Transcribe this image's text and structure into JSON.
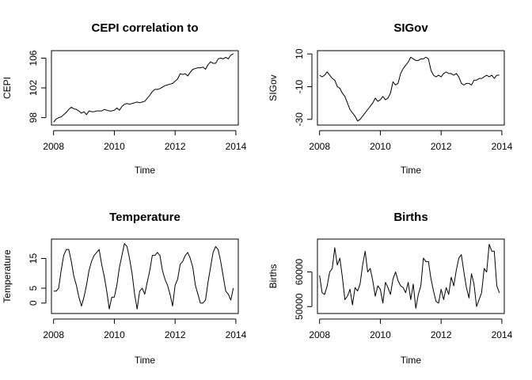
{
  "chart_data": [
    {
      "type": "line",
      "title": "CEPI correlation to",
      "xlabel": "Time",
      "ylabel": "CEPI",
      "xlim": [
        2007.93,
        2014.08
      ],
      "ylim": [
        97.0,
        107.0
      ],
      "x_ticks": [
        2008,
        2010,
        2012,
        2014
      ],
      "y_ticks": [
        98,
        102,
        106
      ],
      "x": [
        2008.0,
        2008.083,
        2008.167,
        2008.25,
        2008.333,
        2008.417,
        2008.5,
        2008.583,
        2008.667,
        2008.75,
        2008.833,
        2008.917,
        2009.0,
        2009.083,
        2009.167,
        2009.25,
        2009.333,
        2009.417,
        2009.5,
        2009.583,
        2009.667,
        2009.75,
        2009.833,
        2009.917,
        2010.0,
        2010.083,
        2010.167,
        2010.25,
        2010.333,
        2010.417,
        2010.5,
        2010.583,
        2010.667,
        2010.75,
        2010.833,
        2010.917,
        2011.0,
        2011.083,
        2011.167,
        2011.25,
        2011.333,
        2011.417,
        2011.5,
        2011.583,
        2011.667,
        2011.75,
        2011.833,
        2011.917,
        2012.0,
        2012.083,
        2012.167,
        2012.25,
        2012.333,
        2012.417,
        2012.5,
        2012.583,
        2012.667,
        2012.75,
        2012.833,
        2012.917,
        2013.0,
        2013.083,
        2013.167,
        2013.25,
        2013.333,
        2013.417,
        2013.5,
        2013.583,
        2013.667,
        2013.75,
        2013.833,
        2013.917
      ],
      "series": [
        {
          "values": [
            97.4,
            97.8,
            98.0,
            98.1,
            98.4,
            98.7,
            99.1,
            99.4,
            99.2,
            99.1,
            98.9,
            98.6,
            98.8,
            98.4,
            98.9,
            98.8,
            98.8,
            98.9,
            98.9,
            98.9,
            99.1,
            99.0,
            98.9,
            98.9,
            99.0,
            99.3,
            99.0,
            99.5,
            99.8,
            99.9,
            99.8,
            99.9,
            100.0,
            100.1,
            100.0,
            100.1,
            100.2,
            100.6,
            101.0,
            101.5,
            101.8,
            101.8,
            101.9,
            102.1,
            102.3,
            102.4,
            102.5,
            102.6,
            102.9,
            103.2,
            103.9,
            103.8,
            103.9,
            103.6,
            104.1,
            104.5,
            104.6,
            104.7,
            104.7,
            104.8,
            104.5,
            105.1,
            105.5,
            105.3,
            105.3,
            105.9,
            106.0,
            105.9,
            106.1,
            105.9,
            106.4,
            106.6
          ]
        }
      ]
    },
    {
      "type": "line",
      "title": "SIGov",
      "xlabel": "Time",
      "ylabel": "SIGov",
      "xlim": [
        2007.93,
        2014.08
      ],
      "ylim": [
        -33.5,
        12.0
      ],
      "x_ticks": [
        2008,
        2010,
        2012,
        2014
      ],
      "y_ticks": [
        -30,
        -10,
        10
      ],
      "x": [
        2008.0,
        2008.083,
        2008.167,
        2008.25,
        2008.333,
        2008.417,
        2008.5,
        2008.583,
        2008.667,
        2008.75,
        2008.833,
        2008.917,
        2009.0,
        2009.083,
        2009.167,
        2009.25,
        2009.333,
        2009.417,
        2009.5,
        2009.583,
        2009.667,
        2009.75,
        2009.833,
        2009.917,
        2010.0,
        2010.083,
        2010.167,
        2010.25,
        2010.333,
        2010.417,
        2010.5,
        2010.583,
        2010.667,
        2010.75,
        2010.833,
        2010.917,
        2011.0,
        2011.083,
        2011.167,
        2011.25,
        2011.333,
        2011.417,
        2011.5,
        2011.583,
        2011.667,
        2011.75,
        2011.833,
        2011.917,
        2012.0,
        2012.083,
        2012.167,
        2012.25,
        2012.333,
        2012.417,
        2012.5,
        2012.583,
        2012.667,
        2012.75,
        2012.833,
        2012.917,
        2013.0,
        2013.083,
        2013.167,
        2013.25,
        2013.333,
        2013.417,
        2013.5,
        2013.583,
        2013.667,
        2013.75,
        2013.833,
        2013.917
      ],
      "series": [
        {
          "values": [
            -3,
            -4,
            -3,
            -1,
            -3,
            -5,
            -6,
            -10,
            -11,
            -14,
            -16,
            -20,
            -24,
            -26,
            -28,
            -31,
            -30,
            -28,
            -26,
            -24,
            -22,
            -20,
            -17,
            -19,
            -18,
            -16,
            -18,
            -17,
            -14,
            -7,
            -9,
            -8,
            -2,
            1,
            3,
            5,
            8,
            7,
            6,
            6,
            7,
            7,
            8,
            7,
            0,
            -3,
            -4,
            -3,
            -4,
            -2,
            -1,
            -2,
            -2,
            -3,
            -2,
            -4,
            -8,
            -9,
            -8,
            -8,
            -9,
            -6,
            -6,
            -5,
            -5,
            -4,
            -3,
            -4,
            -3,
            -5,
            -3,
            -3
          ]
        }
      ]
    },
    {
      "type": "line",
      "title": "Temperature",
      "xlabel": "Time",
      "ylabel": "Temperature",
      "xlim": [
        2007.93,
        2014.08
      ],
      "ylim": [
        -3.5,
        21.5
      ],
      "x_ticks": [
        2008,
        2010,
        2012,
        2014
      ],
      "y_ticks": [
        0,
        5,
        15
      ],
      "x": [
        2008.0,
        2008.083,
        2008.167,
        2008.25,
        2008.333,
        2008.417,
        2008.5,
        2008.583,
        2008.667,
        2008.75,
        2008.833,
        2008.917,
        2009.0,
        2009.083,
        2009.167,
        2009.25,
        2009.333,
        2009.417,
        2009.5,
        2009.583,
        2009.667,
        2009.75,
        2009.833,
        2009.917,
        2010.0,
        2010.083,
        2010.167,
        2010.25,
        2010.333,
        2010.417,
        2010.5,
        2010.583,
        2010.667,
        2010.75,
        2010.833,
        2010.917,
        2011.0,
        2011.083,
        2011.167,
        2011.25,
        2011.333,
        2011.417,
        2011.5,
        2011.583,
        2011.667,
        2011.75,
        2011.833,
        2011.917,
        2012.0,
        2012.083,
        2012.167,
        2012.25,
        2012.333,
        2012.417,
        2012.5,
        2012.583,
        2012.667,
        2012.75,
        2012.833,
        2012.917,
        2013.0,
        2013.083,
        2013.167,
        2013.25,
        2013.333,
        2013.417,
        2013.5,
        2013.583,
        2013.667,
        2013.75,
        2013.833,
        2013.917
      ],
      "series": [
        {
          "values": [
            4,
            4,
            5,
            11,
            16,
            18,
            18,
            14,
            9,
            6,
            2,
            -1,
            2,
            6,
            11,
            14,
            16,
            17,
            18,
            13,
            9,
            4,
            -2,
            2,
            2,
            6,
            12,
            16,
            20,
            19,
            15,
            10,
            3,
            -2,
            4,
            5,
            3,
            7,
            11,
            16,
            16,
            17,
            16,
            11,
            8,
            6,
            3,
            -1,
            6,
            8,
            13,
            14,
            16,
            17,
            15,
            12,
            6,
            3,
            0,
            0,
            1,
            7,
            12,
            17,
            19,
            18,
            14,
            9,
            4,
            3,
            1,
            5
          ]
        }
      ]
    },
    {
      "type": "line",
      "title": "Births",
      "xlabel": "Time",
      "ylabel": "Births",
      "xlim": [
        2007.93,
        2014.08
      ],
      "ylim": [
        48000,
        69500
      ],
      "x_ticks": [
        2008,
        2010,
        2012,
        2014
      ],
      "y_ticks": [
        50000,
        60000
      ],
      "x": [
        2008.0,
        2008.083,
        2008.167,
        2008.25,
        2008.333,
        2008.417,
        2008.5,
        2008.583,
        2008.667,
        2008.75,
        2008.833,
        2008.917,
        2009.0,
        2009.083,
        2009.167,
        2009.25,
        2009.333,
        2009.417,
        2009.5,
        2009.583,
        2009.667,
        2009.75,
        2009.833,
        2009.917,
        2010.0,
        2010.083,
        2010.167,
        2010.25,
        2010.333,
        2010.417,
        2010.5,
        2010.583,
        2010.667,
        2010.75,
        2010.833,
        2010.917,
        2011.0,
        2011.083,
        2011.167,
        2011.25,
        2011.333,
        2011.417,
        2011.5,
        2011.583,
        2011.667,
        2011.75,
        2011.833,
        2011.917,
        2012.0,
        2012.083,
        2012.167,
        2012.25,
        2012.333,
        2012.417,
        2012.5,
        2012.583,
        2012.667,
        2012.75,
        2012.833,
        2012.917,
        2013.0,
        2013.083,
        2013.167,
        2013.25,
        2013.333,
        2013.417,
        2013.5,
        2013.583,
        2013.667,
        2013.75,
        2013.833,
        2013.917
      ],
      "series": [
        {
          "values": [
            59000,
            54000,
            53500,
            56000,
            60000,
            61000,
            67000,
            62000,
            64000,
            58500,
            52000,
            53000,
            55000,
            50500,
            55500,
            54500,
            56500,
            62000,
            66000,
            60000,
            61000,
            57500,
            53000,
            56000,
            55000,
            51000,
            57000,
            55500,
            53500,
            58000,
            60000,
            57500,
            56000,
            55500,
            54000,
            57000,
            52000,
            56500,
            49500,
            53500,
            56000,
            64000,
            63000,
            63000,
            58000,
            54500,
            51500,
            51000,
            55000,
            52000,
            55500,
            53500,
            58500,
            56000,
            60500,
            64000,
            65000,
            60000,
            55500,
            52500,
            59500,
            56500,
            50000,
            52000,
            54000,
            61000,
            60000,
            68000,
            66000,
            66000,
            56000,
            54000
          ]
        }
      ]
    }
  ]
}
